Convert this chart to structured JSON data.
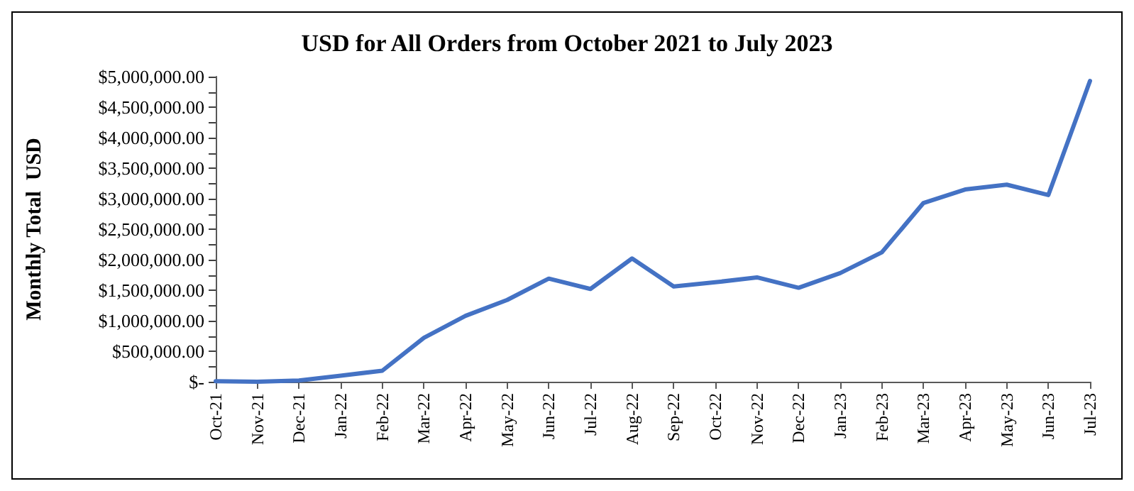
{
  "chart_data": {
    "type": "line",
    "title": "USD for All Orders from October 2021 to July 2023",
    "ylabel": "Monthly Total  USD",
    "categories": [
      "Oct-21",
      "Nov-21",
      "Dec-21",
      "Jan-22",
      "Feb-22",
      "Mar-22",
      "Apr-22",
      "May-22",
      "Jun-22",
      "Jul-22",
      "Aug-22",
      "Sep-22",
      "Oct-22",
      "Nov-22",
      "Dec-22",
      "Jan-23",
      "Feb-23",
      "Mar-23",
      "Apr-23",
      "May-23",
      "Jun-23",
      "Jul-23"
    ],
    "series": [
      {
        "color": "#4472c4",
        "values": [
          10000,
          0,
          20000,
          100000,
          180000,
          720000,
          1080000,
          1340000,
          1690000,
          1520000,
          2020000,
          1560000,
          1630000,
          1710000,
          1540000,
          1780000,
          2120000,
          2930000,
          3150000,
          3230000,
          3060000,
          4930000
        ]
      }
    ],
    "ylim": [
      0,
      5000000
    ],
    "yticks": [
      {
        "value": 0,
        "label": "$-"
      },
      {
        "value": 250000,
        "label": null
      },
      {
        "value": 500000,
        "label": "$500,000.00"
      },
      {
        "value": 750000,
        "label": null
      },
      {
        "value": 1000000,
        "label": "$1,000,000.00"
      },
      {
        "value": 1250000,
        "label": null
      },
      {
        "value": 1500000,
        "label": "$1,500,000.00"
      },
      {
        "value": 1750000,
        "label": null
      },
      {
        "value": 2000000,
        "label": "$2,000,000.00"
      },
      {
        "value": 2250000,
        "label": null
      },
      {
        "value": 2500000,
        "label": "$2,500,000.00"
      },
      {
        "value": 2750000,
        "label": null
      },
      {
        "value": 3000000,
        "label": "$3,000,000.00"
      },
      {
        "value": 3250000,
        "label": null
      },
      {
        "value": 3500000,
        "label": "$3,500,000.00"
      },
      {
        "value": 3750000,
        "label": null
      },
      {
        "value": 4000000,
        "label": "$4,000,000.00"
      },
      {
        "value": 4250000,
        "label": null
      },
      {
        "value": 4500000,
        "label": "$4,500,000.00"
      },
      {
        "value": 4750000,
        "label": null
      },
      {
        "value": 5000000,
        "label": "$5,000,000.00"
      }
    ],
    "grid": false,
    "marker": "none",
    "line_style": "solid"
  }
}
